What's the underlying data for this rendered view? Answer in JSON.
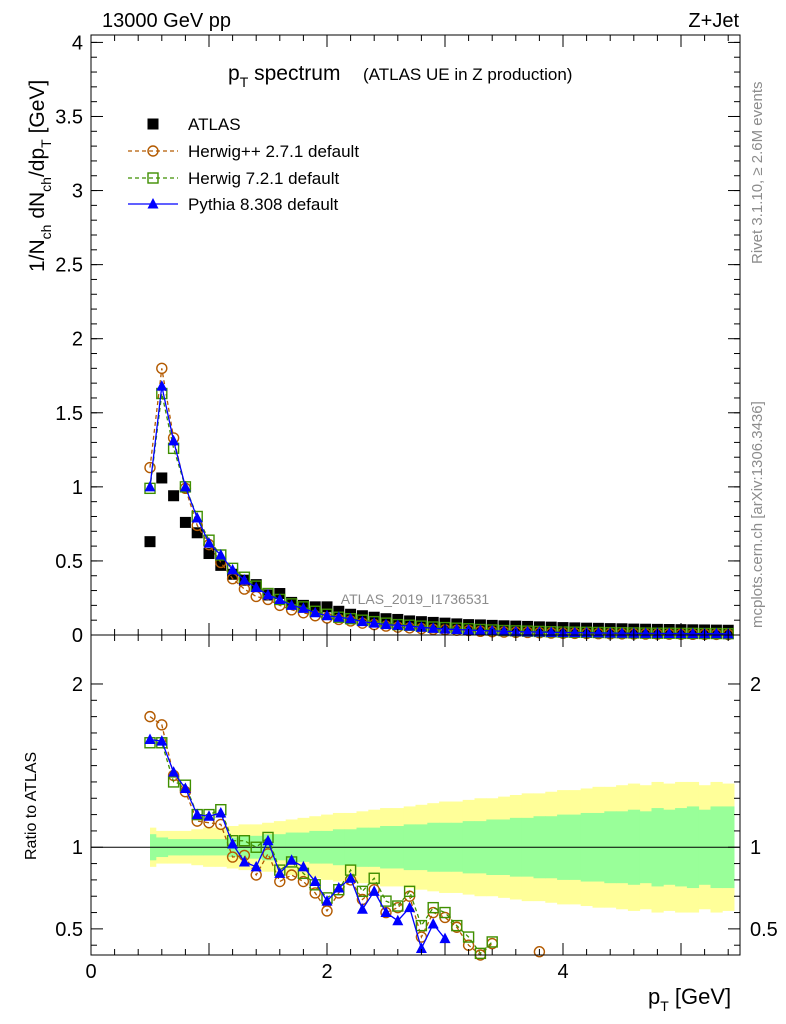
{
  "header": {
    "energy_label": "13000 GeV pp",
    "process_label": "Z+Jet"
  },
  "side_labels": {
    "rivet": "Rivet 3.1.10, ≥ 2.6M events",
    "mcplots": "mcplots.cern.ch [arXiv:1306.3436]"
  },
  "chart_data": {
    "type": "scatter",
    "title_main": "p",
    "title_sub": "T",
    "title_rest": " spectrum",
    "title_note": "(ATLAS UE in Z production)",
    "watermark": "ATLAS_2019_I1736531",
    "xlabel": "p",
    "xlabel_sub": "T",
    "xlabel_unit": " [GeV]",
    "ylabel": "1/N_ch dN_ch/dp_T [GeV]",
    "ylabel_parts": [
      "1/N",
      "ch",
      " dN",
      "ch",
      "/dp",
      "T",
      " [GeV]"
    ],
    "ratio_ylabel": "Ratio to ATLAS",
    "xlim": [
      0,
      5.5
    ],
    "ylim": [
      0,
      4.05
    ],
    "ratio_ylim": [
      0.34,
      2.3
    ],
    "x_ticks": [
      0,
      2,
      4
    ],
    "y_ticks": [
      0,
      0.5,
      1,
      1.5,
      2,
      2.5,
      3,
      3.5,
      4
    ],
    "y_tick_labels": [
      "0",
      "0.5",
      "1",
      "1.5",
      "2",
      "2.5",
      "3",
      "3.5",
      "4"
    ],
    "ratio_ticks": [
      0.5,
      1,
      2
    ],
    "ratio_tick_labels": [
      "0.5",
      "1",
      "2"
    ],
    "x_tick_labels": [
      "0",
      "2",
      "4"
    ],
    "legend_position": "top-left",
    "bin_edges": [
      0.5,
      0.55,
      0.65,
      0.75,
      0.85,
      0.95,
      1.05,
      1.15,
      1.25,
      1.35,
      1.45,
      1.55,
      1.65,
      1.75,
      1.85,
      1.95,
      2.05,
      2.15,
      2.25,
      2.35,
      2.45,
      2.55,
      2.65,
      2.75,
      2.85,
      2.95,
      3.05,
      3.15,
      3.25,
      3.35,
      3.45,
      3.55,
      3.65,
      3.75,
      3.85,
      3.95,
      4.05,
      4.15,
      4.25,
      4.35,
      4.45,
      4.55,
      4.65,
      4.75,
      4.85,
      4.95,
      5.05,
      5.15,
      5.25,
      5.35,
      5.45
    ],
    "x": [
      0.5,
      0.6,
      0.7,
      0.8,
      0.9,
      1.0,
      1.1,
      1.2,
      1.3,
      1.4,
      1.5,
      1.6,
      1.7,
      1.8,
      1.9,
      2.0,
      2.1,
      2.2,
      2.3,
      2.4,
      2.5,
      2.6,
      2.7,
      2.8,
      2.9,
      3.0,
      3.1,
      3.2,
      3.3,
      3.4,
      3.5,
      3.6,
      3.7,
      3.8,
      3.9,
      4.0,
      4.1,
      4.2,
      4.3,
      4.4,
      4.5,
      4.6,
      4.7,
      4.8,
      4.9,
      5.0,
      5.1,
      5.2,
      5.3,
      5.4
    ],
    "band_inner": [
      [
        0.92,
        1.08
      ],
      [
        0.94,
        1.06
      ],
      [
        0.95,
        1.05
      ],
      [
        0.95,
        1.05
      ],
      [
        0.95,
        1.05
      ],
      [
        0.95,
        1.05
      ],
      [
        0.95,
        1.05
      ],
      [
        0.94,
        1.06
      ],
      [
        0.93,
        1.07
      ],
      [
        0.93,
        1.07
      ],
      [
        0.92,
        1.08
      ],
      [
        0.92,
        1.08
      ],
      [
        0.91,
        1.09
      ],
      [
        0.91,
        1.09
      ],
      [
        0.9,
        1.1
      ],
      [
        0.9,
        1.1
      ],
      [
        0.89,
        1.11
      ],
      [
        0.89,
        1.11
      ],
      [
        0.88,
        1.12
      ],
      [
        0.88,
        1.12
      ],
      [
        0.87,
        1.13
      ],
      [
        0.87,
        1.13
      ],
      [
        0.86,
        1.14
      ],
      [
        0.86,
        1.14
      ],
      [
        0.85,
        1.15
      ],
      [
        0.85,
        1.15
      ],
      [
        0.85,
        1.15
      ],
      [
        0.84,
        1.16
      ],
      [
        0.84,
        1.16
      ],
      [
        0.83,
        1.17
      ],
      [
        0.83,
        1.17
      ],
      [
        0.82,
        1.18
      ],
      [
        0.82,
        1.18
      ],
      [
        0.81,
        1.19
      ],
      [
        0.81,
        1.19
      ],
      [
        0.8,
        1.2
      ],
      [
        0.8,
        1.2
      ],
      [
        0.79,
        1.21
      ],
      [
        0.79,
        1.21
      ],
      [
        0.78,
        1.22
      ],
      [
        0.78,
        1.22
      ],
      [
        0.77,
        1.23
      ],
      [
        0.78,
        1.22
      ],
      [
        0.76,
        1.24
      ],
      [
        0.77,
        1.23
      ],
      [
        0.76,
        1.24
      ],
      [
        0.75,
        1.25
      ],
      [
        0.77,
        1.23
      ],
      [
        0.75,
        1.25
      ],
      [
        0.75,
        1.25
      ]
    ],
    "band_outer": [
      [
        0.88,
        1.12
      ],
      [
        0.9,
        1.1
      ],
      [
        0.9,
        1.1
      ],
      [
        0.9,
        1.1
      ],
      [
        0.89,
        1.11
      ],
      [
        0.88,
        1.12
      ],
      [
        0.88,
        1.12
      ],
      [
        0.87,
        1.13
      ],
      [
        0.86,
        1.14
      ],
      [
        0.86,
        1.14
      ],
      [
        0.85,
        1.15
      ],
      [
        0.84,
        1.16
      ],
      [
        0.83,
        1.17
      ],
      [
        0.82,
        1.18
      ],
      [
        0.81,
        1.19
      ],
      [
        0.8,
        1.2
      ],
      [
        0.79,
        1.21
      ],
      [
        0.79,
        1.21
      ],
      [
        0.78,
        1.22
      ],
      [
        0.77,
        1.23
      ],
      [
        0.76,
        1.24
      ],
      [
        0.76,
        1.24
      ],
      [
        0.75,
        1.25
      ],
      [
        0.74,
        1.26
      ],
      [
        0.73,
        1.27
      ],
      [
        0.72,
        1.28
      ],
      [
        0.72,
        1.28
      ],
      [
        0.71,
        1.29
      ],
      [
        0.7,
        1.3
      ],
      [
        0.7,
        1.3
      ],
      [
        0.69,
        1.31
      ],
      [
        0.68,
        1.32
      ],
      [
        0.67,
        1.33
      ],
      [
        0.67,
        1.33
      ],
      [
        0.66,
        1.34
      ],
      [
        0.65,
        1.35
      ],
      [
        0.65,
        1.35
      ],
      [
        0.64,
        1.36
      ],
      [
        0.63,
        1.37
      ],
      [
        0.63,
        1.37
      ],
      [
        0.62,
        1.38
      ],
      [
        0.61,
        1.39
      ],
      [
        0.62,
        1.38
      ],
      [
        0.6,
        1.4
      ],
      [
        0.61,
        1.39
      ],
      [
        0.6,
        1.4
      ],
      [
        0.6,
        1.4
      ],
      [
        0.62,
        1.38
      ],
      [
        0.6,
        1.4
      ],
      [
        0.61,
        1.39
      ]
    ],
    "series": [
      {
        "name": "ATLAS",
        "color": "#000000",
        "marker": "square-filled",
        "values": [
          0.63,
          1.06,
          0.94,
          0.76,
          0.69,
          0.55,
          0.47,
          0.41,
          0.37,
          0.34,
          0.27,
          0.28,
          0.22,
          0.2,
          0.19,
          0.19,
          0.16,
          0.14,
          0.13,
          0.12,
          0.11,
          0.105,
          0.095,
          0.09,
          0.085,
          0.08,
          0.075,
          0.07,
          0.068,
          0.065,
          0.062,
          0.06,
          0.058,
          0.055,
          0.053,
          0.05,
          0.048,
          0.046,
          0.045,
          0.043,
          0.042,
          0.04,
          0.039,
          0.038,
          0.037,
          0.036,
          0.035,
          0.034,
          0.033,
          0.032
        ]
      },
      {
        "name": "Herwig++ 2.7.1 default",
        "color": "#b35a00",
        "marker": "circle-open",
        "values": [
          1.13,
          1.8,
          1.33,
          0.99,
          0.74,
          0.61,
          0.49,
          0.38,
          0.31,
          0.26,
          0.24,
          0.2,
          0.17,
          0.15,
          0.13,
          0.115,
          0.105,
          0.095,
          0.08,
          0.07,
          0.06,
          0.053,
          0.048,
          0.043,
          0.038,
          0.035,
          0.032,
          0.03,
          0.025,
          0.022,
          0.02,
          0.018,
          0.017,
          0.015,
          0.013,
          0.012,
          0.011,
          0.01,
          0.009,
          0.008,
          0.0075,
          0.007,
          0.0065,
          0.006,
          0.0055,
          0.005,
          0.0048,
          0.0045,
          0.0042,
          0.004
        ],
        "ratio": [
          1.8,
          1.75,
          1.44,
          1.34,
          1.16,
          1.15,
          1.14,
          0.94,
          0.95,
          0.83,
          0.96,
          0.79,
          0.83,
          0.79,
          0.72,
          0.61,
          0.72,
          0.8,
          0.68,
          0.74,
          0.6,
          0.63,
          0.7,
          0.45,
          0.6,
          0.57,
          0.51,
          0.4,
          0.34,
          0.41,
          null,
          null,
          null,
          0.36
        ]
      },
      {
        "name": "Herwig 7.2.1 default",
        "color": "#3f8f00",
        "marker": "square-open",
        "values": [
          0.99,
          1.63,
          1.26,
          1.0,
          0.8,
          0.64,
          0.54,
          0.45,
          0.39,
          0.33,
          0.28,
          0.24,
          0.21,
          0.19,
          0.16,
          0.14,
          0.12,
          0.11,
          0.1,
          0.09,
          0.08,
          0.07,
          0.066,
          0.06,
          0.054,
          0.05,
          0.046,
          0.042,
          0.037,
          0.034,
          0.03,
          0.028,
          0.026,
          0.024,
          0.022,
          0.02,
          0.019,
          0.018,
          0.017,
          0.016,
          0.015,
          0.014,
          0.013,
          0.012,
          0.012,
          0.011,
          0.011,
          0.01,
          0.01,
          0.009
        ],
        "ratio": [
          1.64,
          1.64,
          1.4,
          1.38,
          1.2,
          1.2,
          1.23,
          1.04,
          1.04,
          1.0,
          1.06,
          0.86,
          0.91,
          0.84,
          0.77,
          0.69,
          0.74,
          0.86,
          0.73,
          0.81,
          0.67,
          0.64,
          0.73,
          0.52,
          0.63,
          0.6,
          0.52,
          0.45,
          0.35,
          0.42
        ]
      },
      {
        "name": "Pythia 8.308 default",
        "color": "#0000ff",
        "marker": "triangle-filled",
        "values": [
          1.0,
          1.68,
          1.31,
          1.0,
          0.79,
          0.62,
          0.54,
          0.44,
          0.37,
          0.32,
          0.27,
          0.24,
          0.2,
          0.18,
          0.15,
          0.13,
          0.12,
          0.11,
          0.09,
          0.08,
          0.07,
          0.065,
          0.06,
          0.052,
          0.045,
          0.04,
          0.037,
          0.034,
          0.03,
          0.028,
          0.025,
          0.023,
          0.021,
          0.02,
          0.018,
          0.017,
          0.016,
          0.015,
          0.014,
          0.013,
          0.012,
          0.012,
          0.011,
          0.011,
          0.01,
          0.01,
          0.009,
          0.009,
          0.009,
          0.008
        ],
        "ratio": [
          1.66,
          1.65,
          1.46,
          1.36,
          1.2,
          1.19,
          1.21,
          1.02,
          0.91,
          0.88,
          1.04,
          0.84,
          0.92,
          0.88,
          0.79,
          0.67,
          0.75,
          0.81,
          0.62,
          0.73,
          0.6,
          0.55,
          0.63,
          0.38,
          0.53,
          0.44
        ]
      }
    ]
  }
}
